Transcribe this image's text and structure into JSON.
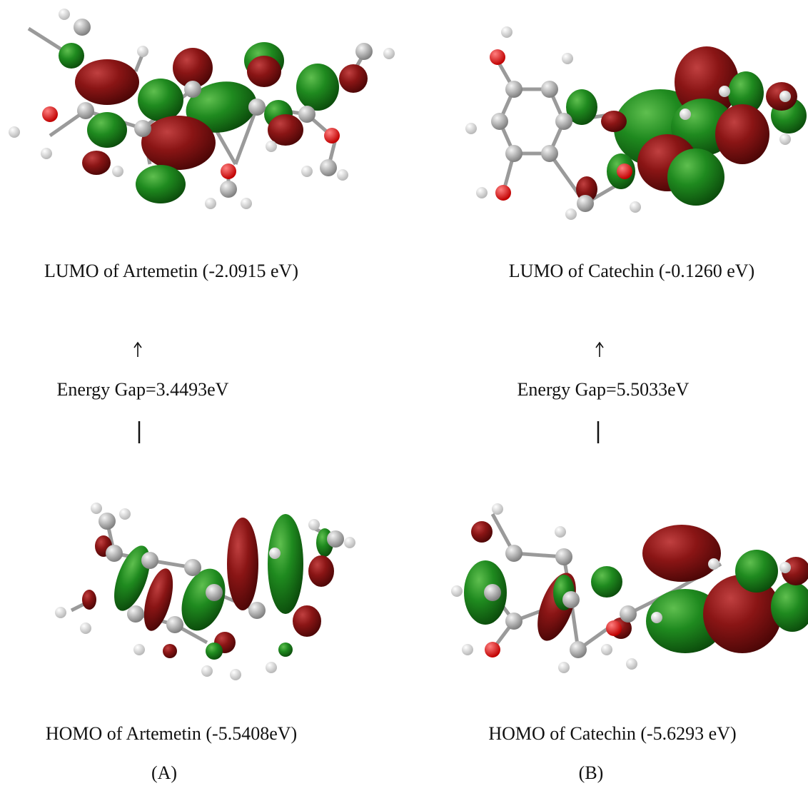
{
  "panels": [
    {
      "lumo_label": "LUMO of Artemetin (-2.0915 eV)",
      "gap_label": "Energy Gap=3.4493eV",
      "homo_label": "HOMO of Artemetin (-5.5408eV)",
      "panel_label": "(A)"
    },
    {
      "lumo_label": "LUMO of Catechin (-0.1260 eV)",
      "gap_label": "Energy Gap=5.5033eV",
      "homo_label": "HOMO of Catechin (-5.6293 eV)",
      "panel_label": "(B)"
    }
  ]
}
